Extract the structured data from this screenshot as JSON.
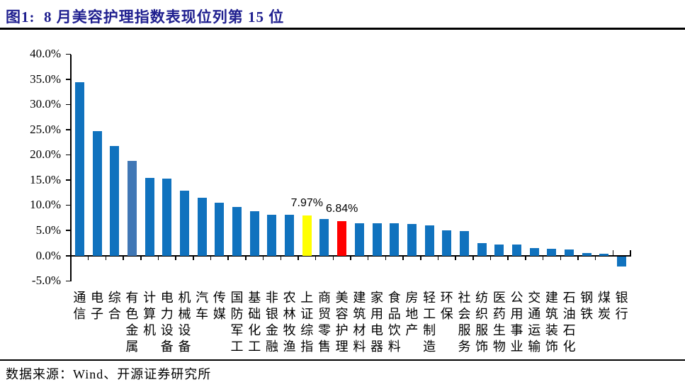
{
  "page": {
    "title": "图1:  8 月美容护理指数表现位列第 15 位",
    "source": "数据来源：Wind、开源证券研究所"
  },
  "chart_data": {
    "type": "bar",
    "title": "8月美容护理指数表现位列第15位",
    "xlabel": "",
    "ylabel": "",
    "ylim": [
      -5,
      40
    ],
    "ytick_values": [
      40,
      35,
      30,
      25,
      20,
      15,
      10,
      5,
      0,
      -5
    ],
    "ytick_labels": [
      "40.0%",
      "35.0%",
      "30.0%",
      "25.0%",
      "20.0%",
      "15.0%",
      "10.0%",
      "5.0%",
      "0.0%",
      "-5.0%"
    ],
    "grid": false,
    "legend": "none",
    "categories": [
      "通信",
      "电子",
      "综合",
      "有色金属",
      "计算机",
      "电力设备",
      "机械设备",
      "汽车",
      "传媒",
      "国防军工",
      "基础化工",
      "非银金融",
      "农林牧渔",
      "上证综指",
      "商贸零售",
      "美容护理",
      "建筑材料",
      "家用电器",
      "食品饮料",
      "房地产",
      "轻工制造",
      "环保",
      "社会服务",
      "纺织服饰",
      "医药生物",
      "公用事业",
      "交通运输",
      "建筑装饰",
      "石油石化",
      "钢铁",
      "煤炭",
      "银行"
    ],
    "values": [
      34.4,
      24.7,
      21.8,
      18.9,
      15.5,
      15.3,
      12.9,
      11.5,
      10.6,
      9.7,
      8.9,
      8.1,
      8.1,
      7.97,
      7.3,
      6.84,
      6.5,
      6.5,
      6.5,
      6.3,
      6.1,
      5.1,
      4.9,
      2.5,
      2.3,
      2.3,
      1.6,
      1.4,
      1.3,
      0.5,
      0.4,
      -2.0
    ],
    "default_bar_color": "#1072be",
    "highlight_colors": {
      "3": "#4077b5",
      "13": "#ffff00",
      "15": "#ff0000"
    },
    "data_labels": [
      {
        "index": 13,
        "category": "上证综指",
        "text": "7.97%"
      },
      {
        "index": 15,
        "category": "美容护理",
        "text": "6.84%"
      }
    ]
  }
}
